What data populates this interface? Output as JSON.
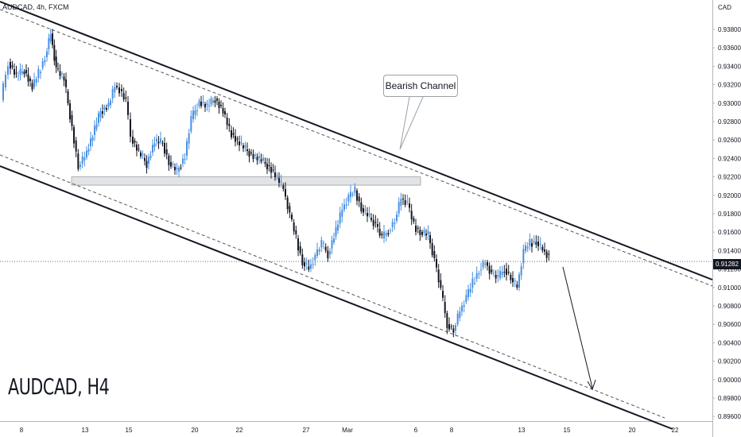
{
  "chart_data": {
    "type": "candlestick",
    "symbol_title": "AUDCAD, 4h, FXCM",
    "currency": "CAD",
    "big_label": "AUDCAD, H4",
    "annotation": "Bearish Channel",
    "current_price": "0.91282",
    "y_ticks": [
      "0.93800",
      "0.93600",
      "0.93400",
      "0.93200",
      "0.93000",
      "0.92800",
      "0.92600",
      "0.92400",
      "0.92200",
      "0.92000",
      "0.91800",
      "0.91600",
      "0.91400",
      "0.91200",
      "0.91000",
      "0.90800",
      "0.90600",
      "0.90400",
      "0.90200",
      "0.90000",
      "0.89800",
      "0.89600"
    ],
    "x_ticks": [
      "8",
      "13",
      "15",
      "20",
      "22",
      "27",
      "Mar",
      "6",
      "8",
      "13",
      "15",
      "20",
      "22"
    ],
    "ylim": [
      0.8958,
      0.9403
    ],
    "support_zone": [
      0.9211,
      0.922
    ],
    "colors": {
      "bull": "#4a90e2",
      "bear": "#131722",
      "zone": "#e2e3e5",
      "zone_border": "#9aa0a6",
      "line": "#131722"
    }
  }
}
